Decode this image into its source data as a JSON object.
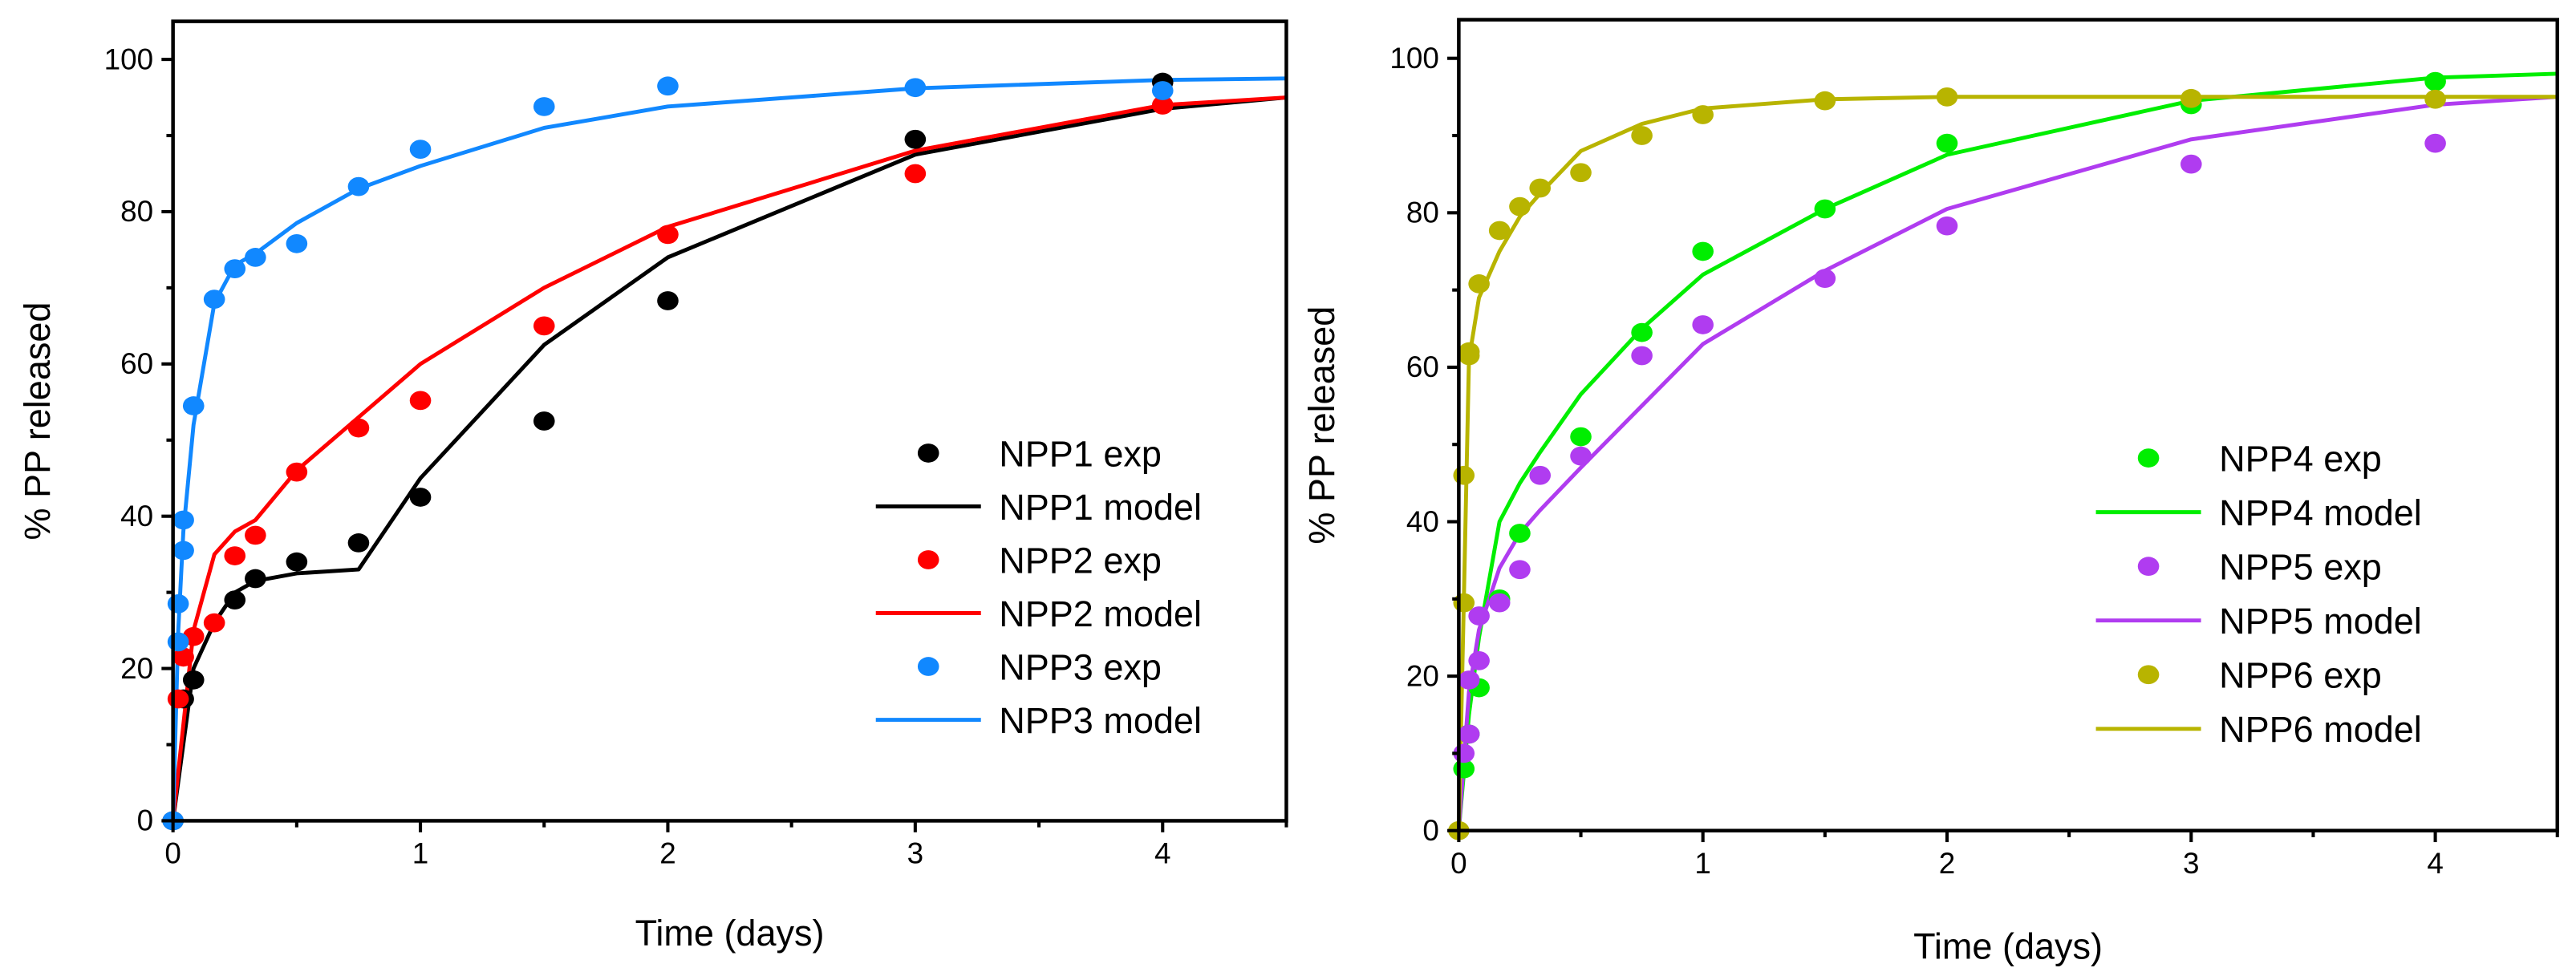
{
  "chart_data": [
    {
      "type": "scatter",
      "title": "",
      "xlabel": "Time (days)",
      "ylabel": "% PP released",
      "xlim": [
        0,
        4.5
      ],
      "ylim": [
        0,
        105
      ],
      "xticks": [
        0,
        1,
        2,
        3,
        4
      ],
      "yticks": [
        0,
        20,
        40,
        60,
        80,
        100
      ],
      "legend_position": "center-right",
      "series": [
        {
          "name": "NPP1 exp",
          "kind": "points",
          "color": "#000000",
          "x": [
            0,
            0.042,
            0.083,
            0.25,
            0.333,
            0.5,
            0.75,
            1,
            1.5,
            2,
            3,
            4
          ],
          "y": [
            0,
            16,
            18.5,
            29,
            31.8,
            34,
            36.5,
            42.5,
            52.5,
            68.3,
            89.5,
            97
          ]
        },
        {
          "name": "NPP1 model",
          "kind": "line",
          "color": "#000000",
          "x": [
            0,
            0.083,
            0.167,
            0.25,
            0.333,
            0.5,
            0.75,
            1,
            1.5,
            2,
            3,
            4,
            4.5
          ],
          "y": [
            0,
            20,
            26,
            30,
            31.5,
            32.5,
            33,
            45,
            62.5,
            74,
            87.5,
            93.5,
            95
          ]
        },
        {
          "name": "NPP2 exp",
          "kind": "points",
          "color": "#ff0000",
          "x": [
            0.021,
            0.042,
            0.083,
            0.167,
            0.25,
            0.333,
            0.5,
            0.75,
            1,
            1.5,
            2,
            3,
            4
          ],
          "y": [
            16,
            21.5,
            24.2,
            26,
            34.8,
            37.5,
            45.8,
            51.6,
            55.2,
            65,
            77,
            85,
            94
          ]
        },
        {
          "name": "NPP2 model",
          "kind": "line",
          "color": "#ff0000",
          "x": [
            0,
            0.083,
            0.167,
            0.25,
            0.333,
            0.5,
            0.75,
            1,
            1.5,
            2,
            3,
            4,
            4.5
          ],
          "y": [
            0,
            25,
            35,
            38,
            39.5,
            46,
            53,
            60,
            70,
            78,
            88,
            94,
            95
          ]
        },
        {
          "name": "NPP3 exp",
          "kind": "points",
          "color": "#1188ff",
          "x": [
            0,
            0.021,
            0.021,
            0.042,
            0.042,
            0.083,
            0.167,
            0.25,
            0.333,
            0.5,
            0.75,
            1,
            1.5,
            2,
            3,
            4
          ],
          "y": [
            0,
            23.5,
            28.5,
            35.5,
            39.5,
            54.5,
            68.5,
            72.5,
            74,
            75.8,
            83.3,
            88.2,
            93.8,
            96.5,
            96.3,
            95.9
          ]
        },
        {
          "name": "NPP3 model",
          "kind": "line",
          "color": "#1188ff",
          "x": [
            0,
            0.021,
            0.042,
            0.083,
            0.167,
            0.25,
            0.333,
            0.5,
            0.75,
            1,
            1.5,
            2,
            3,
            4,
            4.5
          ],
          "y": [
            0,
            25,
            38,
            52,
            68,
            73,
            74.5,
            78.5,
            83,
            86,
            91,
            93.8,
            96.2,
            97.3,
            97.5
          ]
        }
      ]
    },
    {
      "type": "scatter",
      "title": "",
      "xlabel": "Time (days)",
      "ylabel": "% PP released",
      "xlim": [
        0,
        4.5
      ],
      "ylim": [
        0,
        105
      ],
      "xticks": [
        0,
        1,
        2,
        3,
        4
      ],
      "yticks": [
        0,
        20,
        40,
        60,
        80,
        100
      ],
      "legend_position": "center-right",
      "series": [
        {
          "name": "NPP4 exp",
          "kind": "points",
          "color": "#00ee00",
          "x": [
            0.021,
            0.042,
            0.083,
            0.167,
            0.25,
            0.5,
            0.75,
            1,
            1.5,
            2,
            3,
            4
          ],
          "y": [
            8,
            12.5,
            18.5,
            30,
            38.5,
            51,
            64.5,
            75,
            80.5,
            89,
            94,
            97
          ]
        },
        {
          "name": "NPP4 model",
          "kind": "line",
          "color": "#00ee00",
          "x": [
            0,
            0.042,
            0.083,
            0.167,
            0.25,
            0.333,
            0.5,
            0.75,
            1,
            1.5,
            2,
            3,
            4,
            4.5
          ],
          "y": [
            0,
            15,
            25,
            40,
            45,
            49,
            56.5,
            65,
            72,
            80.5,
            87.5,
            94.5,
            97.5,
            98
          ]
        },
        {
          "name": "NPP5 exp",
          "kind": "points",
          "color": "#b03cf0",
          "x": [
            0.021,
            0.042,
            0.042,
            0.083,
            0.083,
            0.167,
            0.25,
            0.333,
            0.5,
            0.75,
            1,
            1.5,
            2,
            3,
            4
          ],
          "y": [
            10,
            12.5,
            19.5,
            22,
            27.8,
            29.5,
            33.8,
            46,
            48.5,
            61.5,
            65.5,
            71.5,
            78.3,
            86.3,
            89
          ]
        },
        {
          "name": "NPP5 model",
          "kind": "line",
          "color": "#b03cf0",
          "x": [
            0,
            0.042,
            0.083,
            0.167,
            0.25,
            0.333,
            0.5,
            0.75,
            1,
            1.5,
            2,
            3,
            4,
            4.5
          ],
          "y": [
            0,
            18,
            26,
            34,
            38.5,
            41.5,
            47,
            55,
            63,
            72.5,
            80.5,
            89.5,
            94,
            95
          ]
        },
        {
          "name": "NPP6 exp",
          "kind": "points",
          "color": "#b8b400",
          "x": [
            0,
            0.021,
            0.021,
            0.042,
            0.042,
            0.083,
            0.167,
            0.25,
            0.333,
            0.5,
            0.75,
            1,
            1.5,
            2,
            3,
            4
          ],
          "y": [
            0,
            29.5,
            46,
            61.5,
            62,
            70.8,
            77.7,
            80.8,
            83.2,
            85.2,
            90,
            92.7,
            94.5,
            95,
            94.8,
            94.7
          ]
        },
        {
          "name": "NPP6 model",
          "kind": "line",
          "color": "#b8b400",
          "x": [
            0,
            0.021,
            0.042,
            0.083,
            0.167,
            0.25,
            0.333,
            0.5,
            0.75,
            1,
            1.5,
            2,
            3,
            4,
            4.5
          ],
          "y": [
            0,
            30,
            61,
            69,
            75,
            79.5,
            82.5,
            88,
            91.5,
            93.5,
            94.7,
            95,
            95,
            95,
            95
          ]
        }
      ]
    }
  ]
}
